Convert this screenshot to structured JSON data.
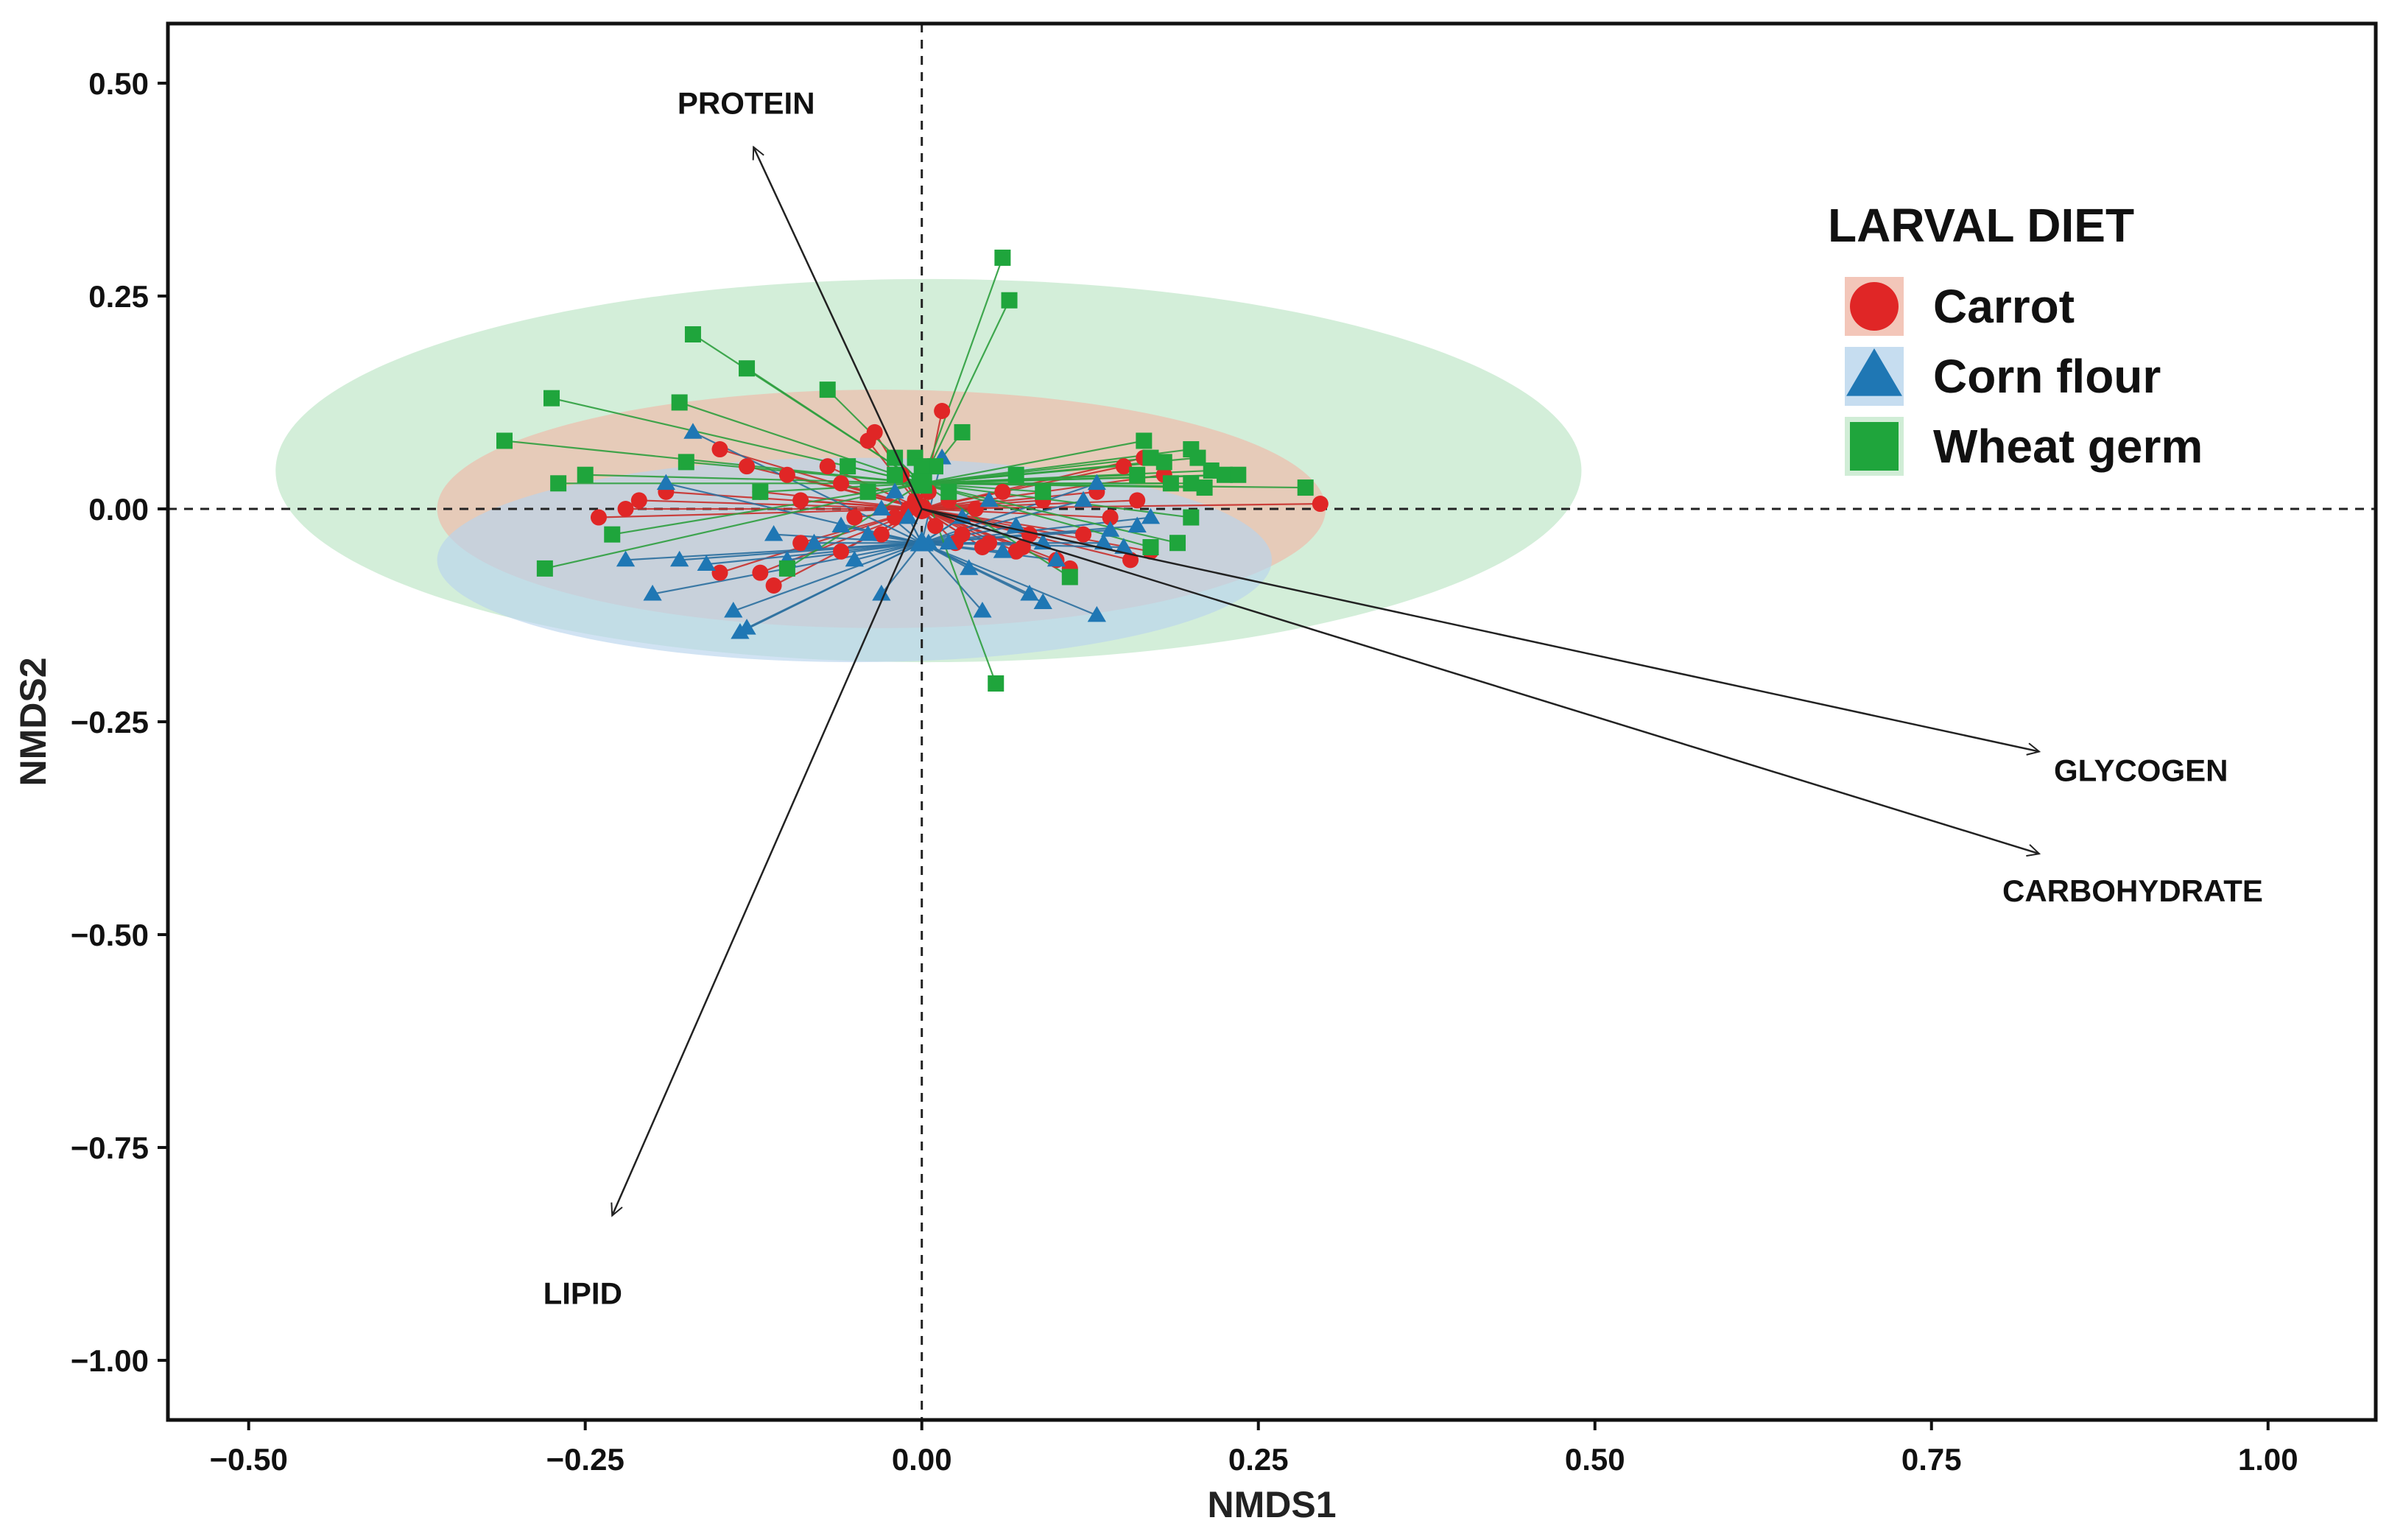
{
  "chart_data": {
    "type": "scatter",
    "subtype": "NMDS ordination biplot with group spiders, ellipses and environmental vectors",
    "xlabel": "NMDS1",
    "ylabel": "NMDS2",
    "xlim": [
      -0.56,
      1.08
    ],
    "ylim": [
      -1.07,
      0.57
    ],
    "x_ticks": [
      -0.5,
      -0.25,
      0.0,
      0.25,
      0.5,
      0.75,
      1.0
    ],
    "y_ticks": [
      0.5,
      0.25,
      0.0,
      -0.25,
      -0.5,
      -0.75,
      -1.0
    ],
    "x_tick_labels": [
      "−0.50",
      "−0.25",
      "0.00",
      "0.25",
      "0.50",
      "0.75",
      "1.00"
    ],
    "y_tick_labels": [
      "0.50",
      "0.25",
      "0.00",
      "−0.25",
      "−0.50",
      "−0.75",
      "−1.00"
    ],
    "grid": false,
    "reference_lines": {
      "x": 0,
      "y": 0,
      "style": "dashed"
    },
    "legend": {
      "title": "LARVAL DIET",
      "position": "top-right",
      "entries": [
        "Carrot",
        "Corn flour",
        "Wheat germ"
      ]
    },
    "vectors": [
      {
        "name": "PROTEIN",
        "x": -0.125,
        "y": 0.425
      },
      {
        "name": "LIPID",
        "x": -0.23,
        "y": -0.83
      },
      {
        "name": "GLYCOGEN",
        "x": 0.83,
        "y": -0.285
      },
      {
        "name": "CARBOHYDRATE",
        "x": 0.83,
        "y": -0.405
      }
    ],
    "series": [
      {
        "name": "Carrot",
        "marker": "circle",
        "color": "#e02626",
        "line_color": "#c8302c",
        "ellipse_color": "#f0b8a8",
        "centroid": [
          0.0,
          0.0
        ],
        "ellipse": {
          "cx": -0.03,
          "cy": 0.0,
          "rx": 0.33,
          "ry": 0.14
        },
        "points": [
          [
            -0.15,
            0.07
          ],
          [
            -0.19,
            0.02
          ],
          [
            -0.21,
            0.01
          ],
          [
            -0.24,
            -0.01
          ],
          [
            -0.22,
            0.0
          ],
          [
            -0.13,
            0.05
          ],
          [
            -0.12,
            0.02
          ],
          [
            -0.1,
            0.04
          ],
          [
            -0.09,
            0.01
          ],
          [
            -0.07,
            0.05
          ],
          [
            -0.06,
            0.03
          ],
          [
            -0.05,
            -0.01
          ],
          [
            -0.04,
            0.08
          ],
          [
            -0.035,
            0.09
          ],
          [
            -0.03,
            -0.03
          ],
          [
            -0.02,
            -0.01
          ],
          [
            -0.015,
            0.04
          ],
          [
            -0.01,
            0.0
          ],
          [
            0.005,
            0.02
          ],
          [
            0.015,
            0.115
          ],
          [
            0.02,
            0.01
          ],
          [
            0.03,
            -0.03
          ],
          [
            0.04,
            0.0
          ],
          [
            0.05,
            -0.04
          ],
          [
            0.06,
            0.02
          ],
          [
            0.07,
            -0.05
          ],
          [
            0.08,
            -0.03
          ],
          [
            0.09,
            0.01
          ],
          [
            0.1,
            -0.06
          ],
          [
            0.11,
            -0.07
          ],
          [
            0.12,
            -0.03
          ],
          [
            0.13,
            0.02
          ],
          [
            0.14,
            -0.01
          ],
          [
            0.15,
            0.05
          ],
          [
            0.16,
            0.01
          ],
          [
            0.17,
            -0.05
          ],
          [
            0.18,
            0.04
          ],
          [
            0.165,
            0.06
          ],
          [
            0.155,
            -0.06
          ],
          [
            0.296,
            0.006
          ],
          [
            -0.09,
            -0.04
          ],
          [
            -0.11,
            -0.09
          ],
          [
            -0.15,
            -0.075
          ],
          [
            -0.12,
            -0.075
          ],
          [
            -0.06,
            -0.05
          ],
          [
            0.025,
            -0.04
          ],
          [
            0.045,
            -0.045
          ],
          [
            0.075,
            -0.045
          ],
          [
            0.01,
            -0.02
          ],
          [
            -0.005,
            0.01
          ]
        ]
      },
      {
        "name": "Corn flour",
        "marker": "triangle",
        "color": "#1f77b4",
        "line_color": "#2b6f9e",
        "ellipse_color": "#b8d4ec",
        "centroid": [
          0.0,
          -0.04
        ],
        "ellipse": {
          "cx": -0.05,
          "cy": -0.06,
          "rx": 0.31,
          "ry": 0.12
        },
        "points": [
          [
            -0.17,
            0.09
          ],
          [
            -0.19,
            0.03
          ],
          [
            -0.22,
            -0.06
          ],
          [
            -0.2,
            -0.1
          ],
          [
            -0.18,
            -0.06
          ],
          [
            -0.16,
            -0.065
          ],
          [
            -0.14,
            -0.12
          ],
          [
            -0.135,
            -0.145
          ],
          [
            -0.13,
            -0.14
          ],
          [
            -0.1,
            -0.06
          ],
          [
            -0.08,
            -0.04
          ],
          [
            -0.06,
            -0.02
          ],
          [
            -0.04,
            -0.03
          ],
          [
            -0.03,
            -0.1
          ],
          [
            -0.02,
            0.02
          ],
          [
            -0.01,
            -0.01
          ],
          [
            0.005,
            -0.04
          ],
          [
            0.015,
            0.06
          ],
          [
            0.02,
            -0.04
          ],
          [
            0.035,
            -0.07
          ],
          [
            0.045,
            -0.12
          ],
          [
            0.06,
            -0.05
          ],
          [
            0.08,
            -0.1
          ],
          [
            0.09,
            -0.11
          ],
          [
            0.1,
            -0.06
          ],
          [
            0.12,
            0.01
          ],
          [
            0.13,
            0.03
          ],
          [
            0.14,
            -0.025
          ],
          [
            0.15,
            -0.045
          ],
          [
            0.16,
            -0.02
          ],
          [
            0.17,
            -0.01
          ],
          [
            0.13,
            -0.125
          ],
          [
            0.07,
            -0.02
          ],
          [
            -0.05,
            -0.06
          ],
          [
            -0.11,
            -0.03
          ],
          [
            0.09,
            -0.04
          ],
          [
            0.05,
            0.01
          ],
          [
            0.135,
            -0.04
          ],
          [
            0.03,
            -0.01
          ],
          [
            -0.03,
            0.0
          ]
        ]
      },
      {
        "name": "Wheat germ",
        "marker": "square",
        "color": "#1fa53c",
        "line_color": "#2e9e3e",
        "ellipse_color": "#c4e8cc",
        "centroid": [
          0.0,
          0.03
        ],
        "ellipse": {
          "cx": 0.005,
          "cy": 0.045,
          "rx": 0.485,
          "ry": 0.225
        },
        "points": [
          [
            -0.31,
            0.08
          ],
          [
            -0.275,
            0.13
          ],
          [
            -0.27,
            0.03
          ],
          [
            -0.25,
            0.04
          ],
          [
            -0.28,
            -0.07
          ],
          [
            -0.23,
            -0.03
          ],
          [
            -0.17,
            0.205
          ],
          [
            -0.13,
            0.165
          ],
          [
            -0.18,
            0.125
          ],
          [
            -0.07,
            0.14
          ],
          [
            -0.175,
            0.055
          ],
          [
            -0.12,
            0.02
          ],
          [
            -0.055,
            0.05
          ],
          [
            -0.1,
            -0.07
          ],
          [
            -0.04,
            0.02
          ],
          [
            -0.02,
            0.04
          ],
          [
            -0.005,
            0.06
          ],
          [
            0.01,
            0.05
          ],
          [
            0.03,
            0.09
          ],
          [
            0.06,
            0.295
          ],
          [
            0.065,
            0.245
          ],
          [
            0.055,
            -0.205
          ],
          [
            0.07,
            0.04
          ],
          [
            0.09,
            0.02
          ],
          [
            0.11,
            -0.08
          ],
          [
            0.16,
            0.04
          ],
          [
            0.165,
            0.08
          ],
          [
            0.17,
            0.06
          ],
          [
            0.18,
            0.055
          ],
          [
            0.185,
            0.03
          ],
          [
            0.2,
            0.03
          ],
          [
            0.2,
            0.07
          ],
          [
            0.205,
            0.06
          ],
          [
            0.21,
            0.025
          ],
          [
            0.215,
            0.045
          ],
          [
            0.225,
            0.04
          ],
          [
            0.235,
            0.04
          ],
          [
            0.285,
            0.025
          ],
          [
            0.19,
            -0.04
          ],
          [
            0.2,
            -0.01
          ],
          [
            0.17,
            -0.045
          ],
          [
            0.02,
            0.02
          ],
          [
            -0.02,
            0.06
          ],
          [
            0.0,
            0.05
          ]
        ]
      }
    ]
  }
}
